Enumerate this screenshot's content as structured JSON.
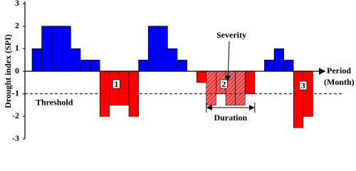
{
  "chart_data": {
    "type": "bar",
    "y_label": "Drought index (SPI)",
    "x_label": [
      "Period",
      "(Month)"
    ],
    "categories": [
      null,
      null,
      null,
      null,
      null,
      null,
      null,
      null,
      null,
      null,
      null,
      null,
      null,
      null,
      null,
      null,
      null,
      null,
      null,
      null,
      null,
      null,
      null,
      null,
      null,
      null,
      null,
      null,
      null
    ],
    "values": [
      1,
      2,
      2,
      2,
      1,
      0.5,
      0.5,
      -2,
      -1.5,
      -1.5,
      -2,
      0.5,
      2,
      2,
      1,
      0.5,
      0,
      -0.5,
      -1.5,
      -1,
      -1.5,
      -1.5,
      -1,
      0,
      0.5,
      1,
      0.5,
      -2.5,
      -2
    ],
    "positive_color": "#0000ff",
    "negative_color": "#ff0000",
    "ylim": [
      -3,
      3
    ],
    "yticks": [
      3,
      2,
      1,
      0,
      -1,
      -2,
      -3
    ],
    "threshold": {
      "value": -1,
      "label": "Threshold"
    },
    "events": [
      {
        "label": "1"
      },
      {
        "label": "2",
        "hatched": true
      },
      {
        "label": "3"
      }
    ],
    "severity_label": "Severity",
    "duration_label": "Duration"
  }
}
